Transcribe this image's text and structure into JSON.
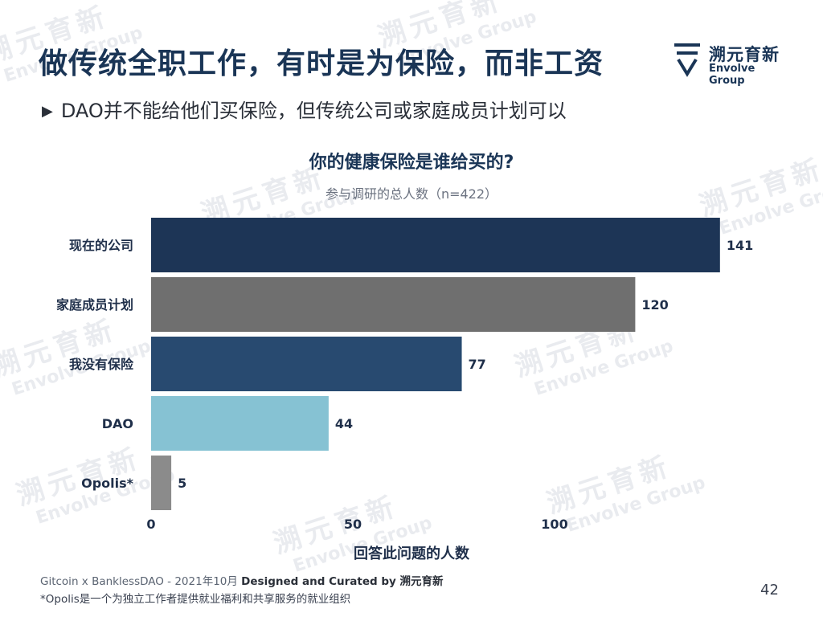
{
  "slide": {
    "title": "做传统全职工作，有时是为保险，而非工资",
    "subtitle": "DAO并不能给他们买保险，但传统公司或家庭成员计划可以",
    "logo": {
      "cn": "溯元育新",
      "en": "Envolve Group"
    },
    "watermark": {
      "cn": "溯元育新",
      "en": "Envolve Group"
    },
    "source_prefix": "Gitcoin x BanklessDAO - 2021年10月",
    "source_bold": "Designed and Curated by 溯元育新",
    "note": "*Opolis是一个为独立工作者提供就业福利和共享服务的就业组织",
    "page_number": "42"
  },
  "chart_data": {
    "type": "bar",
    "orientation": "horizontal",
    "title": "你的健康保险是谁给买的?",
    "subtitle": "参与调研的总人数（n=422）",
    "xlabel": "回答此问题的人数",
    "ylabel": "",
    "categories": [
      "现在的公司",
      "家庭成员计划",
      "我没有保险",
      "DAO",
      "Opolis*"
    ],
    "values": [
      141,
      120,
      77,
      44,
      5
    ],
    "colors": [
      "#1d3556",
      "#6f6f6f",
      "#284a70",
      "#86c2d3",
      "#8b8b8b"
    ],
    "xticks": [
      0,
      50,
      100
    ],
    "xlim": [
      0,
      141
    ],
    "grid": false,
    "legend": "none"
  }
}
